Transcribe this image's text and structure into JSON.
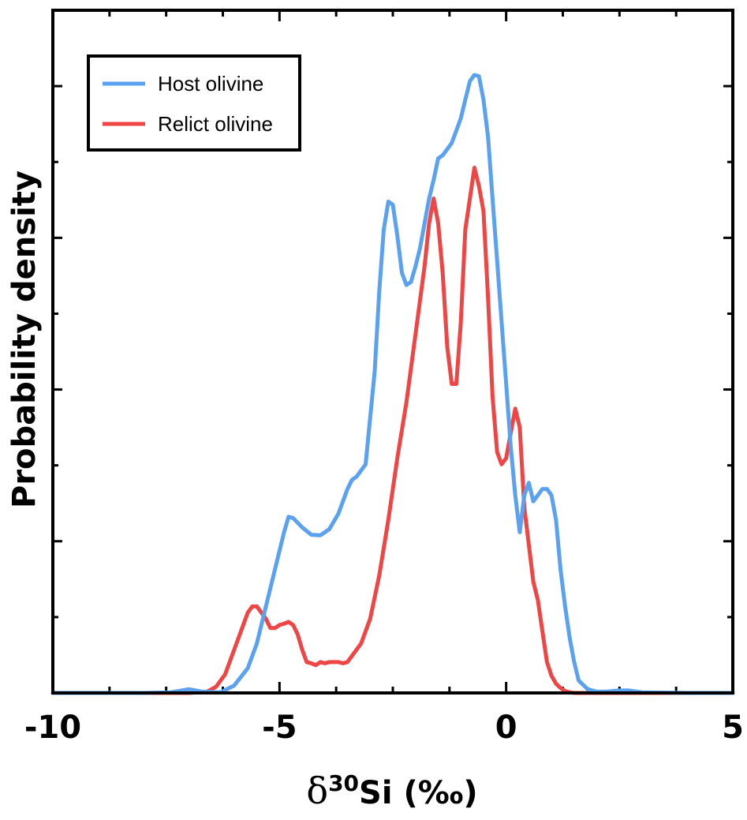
{
  "chart_data": {
    "type": "line",
    "title": "",
    "xlabel": {
      "delta": "δ",
      "sup": "30",
      "rest": "Si (‰)"
    },
    "ylabel": "Probability density",
    "xlim": [
      -10,
      5
    ],
    "ylim": [
      0,
      1
    ],
    "xticks": [
      -10,
      -5,
      0,
      5
    ],
    "xtick_labels": [
      "-10",
      "-5",
      "0",
      "5"
    ],
    "grid": false,
    "legend_position": "top-left",
    "series": [
      {
        "name": "Host olivine",
        "color": "#5aa2f0",
        "x": [
          -10,
          -8,
          -7.4,
          -7.0,
          -6.7,
          -6.3,
          -6.0,
          -5.7,
          -5.5,
          -5.3,
          -5.1,
          -4.9,
          -4.8,
          -4.7,
          -4.5,
          -4.3,
          -4.1,
          -3.9,
          -3.7,
          -3.5,
          -3.4,
          -3.3,
          -3.1,
          -2.9,
          -2.8,
          -2.7,
          -2.6,
          -2.5,
          -2.4,
          -2.3,
          -2.2,
          -2.1,
          -2.0,
          -1.9,
          -1.8,
          -1.7,
          -1.6,
          -1.5,
          -1.4,
          -1.3,
          -1.2,
          -1.1,
          -1.0,
          -0.9,
          -0.8,
          -0.7,
          -0.6,
          -0.5,
          -0.4,
          -0.3,
          -0.2,
          -0.1,
          0,
          0.1,
          0.2,
          0.3,
          0.4,
          0.5,
          0.6,
          0.7,
          0.8,
          0.9,
          1.0,
          1.1,
          1.2,
          1.3,
          1.4,
          1.5,
          1.6,
          1.8,
          2.0,
          2.2,
          2.5,
          2.7,
          3.0,
          4.0,
          5.0
        ],
        "y": [
          0,
          0,
          0.001,
          0.006,
          0.002,
          0.001,
          0.012,
          0.04,
          0.08,
          0.14,
          0.2,
          0.26,
          0.285,
          0.283,
          0.268,
          0.256,
          0.255,
          0.265,
          0.29,
          0.33,
          0.345,
          0.35,
          0.37,
          0.52,
          0.65,
          0.75,
          0.795,
          0.79,
          0.74,
          0.68,
          0.66,
          0.665,
          0.69,
          0.72,
          0.76,
          0.8,
          0.83,
          0.865,
          0.87,
          0.88,
          0.89,
          0.91,
          0.93,
          0.96,
          0.99,
          1.0,
          0.998,
          0.96,
          0.9,
          0.8,
          0.7,
          0.6,
          0.5,
          0.4,
          0.32,
          0.26,
          0.32,
          0.34,
          0.31,
          0.32,
          0.33,
          0.33,
          0.32,
          0.28,
          0.2,
          0.14,
          0.09,
          0.05,
          0.02,
          0.006,
          0.002,
          0.002,
          0.004,
          0.004,
          0.001,
          0,
          0
        ]
      },
      {
        "name": "Relict olivine",
        "color": "#f04545",
        "x": [
          -10,
          -7,
          -6.6,
          -6.4,
          -6.2,
          -6.0,
          -5.8,
          -5.7,
          -5.6,
          -5.5,
          -5.4,
          -5.3,
          -5.2,
          -5.1,
          -5.0,
          -4.9,
          -4.8,
          -4.7,
          -4.6,
          -4.5,
          -4.4,
          -4.3,
          -4.2,
          -4.1,
          -4.0,
          -3.9,
          -3.8,
          -3.7,
          -3.6,
          -3.5,
          -3.4,
          -3.3,
          -3.2,
          -3.0,
          -2.8,
          -2.6,
          -2.4,
          -2.2,
          -2.0,
          -1.8,
          -1.7,
          -1.6,
          -1.5,
          -1.4,
          -1.3,
          -1.2,
          -1.1,
          -1.0,
          -0.9,
          -0.8,
          -0.7,
          -0.6,
          -0.5,
          -0.4,
          -0.3,
          -0.2,
          -0.1,
          0,
          0.1,
          0.2,
          0.3,
          0.4,
          0.5,
          0.6,
          0.7,
          0.8,
          0.9,
          1.0,
          1.1,
          1.2,
          1.3,
          1.4,
          1.5,
          1.6,
          1.8,
          2.0,
          5.0
        ],
        "y": [
          0,
          0,
          0.002,
          0.01,
          0.03,
          0.07,
          0.11,
          0.13,
          0.14,
          0.14,
          0.13,
          0.12,
          0.105,
          0.105,
          0.11,
          0.112,
          0.115,
          0.11,
          0.095,
          0.07,
          0.05,
          0.048,
          0.045,
          0.05,
          0.048,
          0.05,
          0.05,
          0.05,
          0.048,
          0.05,
          0.06,
          0.07,
          0.08,
          0.12,
          0.19,
          0.28,
          0.38,
          0.47,
          0.58,
          0.69,
          0.76,
          0.8,
          0.76,
          0.68,
          0.56,
          0.5,
          0.5,
          0.6,
          0.75,
          0.8,
          0.85,
          0.82,
          0.78,
          0.64,
          0.48,
          0.39,
          0.37,
          0.38,
          0.42,
          0.46,
          0.43,
          0.3,
          0.24,
          0.18,
          0.15,
          0.1,
          0.05,
          0.028,
          0.015,
          0.008,
          0.003,
          0.001,
          0,
          0,
          0,
          0,
          0
        ]
      }
    ]
  }
}
